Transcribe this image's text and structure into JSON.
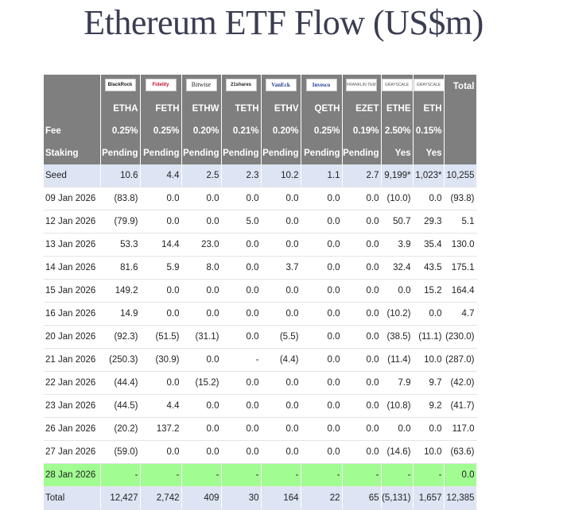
{
  "title": "Ethereum ETF Flow (US$m)",
  "logos": [
    {
      "name": "blackrock-logo",
      "text": "BlackRock"
    },
    {
      "name": "fidelity-logo",
      "text": "Fidelity"
    },
    {
      "name": "bitwise-logo",
      "text": "Bitwise"
    },
    {
      "name": "21shares-logo",
      "text": "21shares"
    },
    {
      "name": "vaneck-logo",
      "text": "VanEck"
    },
    {
      "name": "invesco-logo",
      "text": "Invesco"
    },
    {
      "name": "franklin-logo",
      "text": "FRANKLIN TEMPLETON"
    },
    {
      "name": "grayscale-logo",
      "text": "GRAYSCALE"
    },
    {
      "name": "grayscale-mini-logo",
      "text": "GRAYSCALE"
    }
  ],
  "total_header": "Total",
  "tickers": [
    "ETHA",
    "FETH",
    "ETHW",
    "TETH",
    "ETHV",
    "QETH",
    "EZET",
    "ETHE",
    "ETH"
  ],
  "fee_label": "Fee",
  "fees": [
    "0.25%",
    "0.25%",
    "0.20%",
    "0.21%",
    "0.20%",
    "0.25%",
    "0.19%",
    "2.50%",
    "0.15%"
  ],
  "staking_label": "Staking",
  "staking": [
    "Pending",
    "Pending",
    "Pending",
    "Pending",
    "Pending",
    "Pending",
    "Pending",
    "Yes",
    "Yes"
  ],
  "rows": [
    {
      "label": "Seed",
      "values": [
        "10.6",
        "4.4",
        "2.5",
        "2.3",
        "10.2",
        "1.1",
        "2.7",
        "9,199*",
        "1,023*",
        "10,255"
      ],
      "kind": "seed"
    },
    {
      "label": "09 Jan 2026",
      "values": [
        "(83.8)",
        "0.0",
        "0.0",
        "0.0",
        "0.0",
        "0.0",
        "0.0",
        "(10.0)",
        "0.0",
        "(93.8)"
      ]
    },
    {
      "label": "12 Jan 2026",
      "values": [
        "(79.9)",
        "0.0",
        "0.0",
        "5.0",
        "0.0",
        "0.0",
        "0.0",
        "50.7",
        "29.3",
        "5.1"
      ]
    },
    {
      "label": "13 Jan 2026",
      "values": [
        "53.3",
        "14.4",
        "23.0",
        "0.0",
        "0.0",
        "0.0",
        "0.0",
        "3.9",
        "35.4",
        "130.0"
      ]
    },
    {
      "label": "14 Jan 2026",
      "values": [
        "81.6",
        "5.9",
        "8.0",
        "0.0",
        "3.7",
        "0.0",
        "0.0",
        "32.4",
        "43.5",
        "175.1"
      ]
    },
    {
      "label": "15 Jan 2026",
      "values": [
        "149.2",
        "0.0",
        "0.0",
        "0.0",
        "0.0",
        "0.0",
        "0.0",
        "0.0",
        "15.2",
        "164.4"
      ]
    },
    {
      "label": "16 Jan 2026",
      "values": [
        "14.9",
        "0.0",
        "0.0",
        "0.0",
        "0.0",
        "0.0",
        "0.0",
        "(10.2)",
        "0.0",
        "4.7"
      ]
    },
    {
      "label": "20 Jan 2026",
      "values": [
        "(92.3)",
        "(51.5)",
        "(31.1)",
        "0.0",
        "(5.5)",
        "0.0",
        "0.0",
        "(38.5)",
        "(11.1)",
        "(230.0)"
      ]
    },
    {
      "label": "21 Jan 2026",
      "values": [
        "(250.3)",
        "(30.9)",
        "0.0",
        "-",
        "(4.4)",
        "0.0",
        "0.0",
        "(11.4)",
        "10.0",
        "(287.0)"
      ]
    },
    {
      "label": "22 Jan 2026",
      "values": [
        "(44.4)",
        "0.0",
        "(15.2)",
        "0.0",
        "0.0",
        "0.0",
        "0.0",
        "7.9",
        "9.7",
        "(42.0)"
      ]
    },
    {
      "label": "23 Jan 2026",
      "values": [
        "(44.5)",
        "4.4",
        "0.0",
        "0.0",
        "0.0",
        "0.0",
        "0.0",
        "(10.8)",
        "9.2",
        "(41.7)"
      ]
    },
    {
      "label": "26 Jan 2026",
      "values": [
        "(20.2)",
        "137.2",
        "0.0",
        "0.0",
        "0.0",
        "0.0",
        "0.0",
        "0.0",
        "0.0",
        "117.0"
      ]
    },
    {
      "label": "27 Jan 2026",
      "values": [
        "(59.0)",
        "0.0",
        "0.0",
        "0.0",
        "0.0",
        "0.0",
        "0.0",
        "(14.6)",
        "10.0",
        "(63.6)"
      ]
    },
    {
      "label": "28 Jan 2026",
      "values": [
        "-",
        "-",
        "-",
        "-",
        "-",
        "-",
        "-",
        "-",
        "-",
        "0.0"
      ],
      "kind": "hl"
    },
    {
      "label": "Total",
      "values": [
        "12,427",
        "2,742",
        "409",
        "30",
        "164",
        "22",
        "65",
        "(5,131)",
        "1,657",
        "12,385"
      ],
      "kind": "total"
    }
  ],
  "colors": {
    "header_bg": "#7f7f7f",
    "seed_bg": "#dde4f3",
    "highlight_bg": "#a1fd92",
    "negative": "#e0191b",
    "title": "#3a3d52"
  }
}
